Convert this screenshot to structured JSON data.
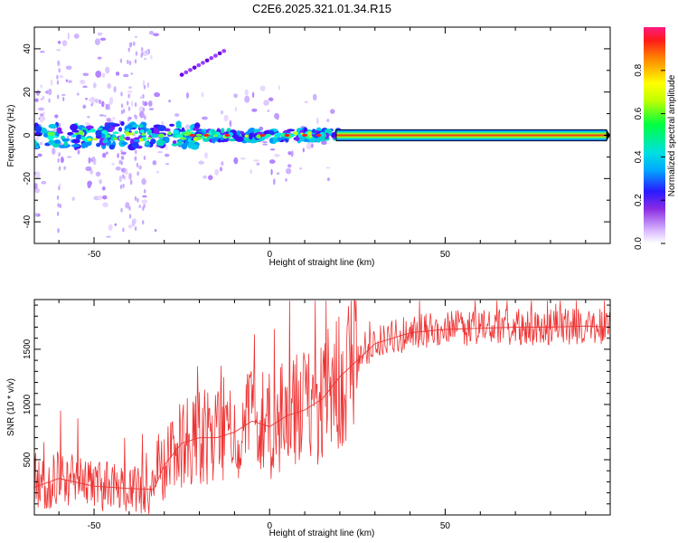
{
  "title": "C2E6.2025.321.01.34.R15",
  "chart_data": [
    {
      "type": "heatmap",
      "xlabel": "Height of straight line (km)",
      "ylabel": "Frequency (Hz)",
      "xlim": [
        -67,
        97
      ],
      "ylim": [
        -50,
        50
      ],
      "xticks": [
        -50,
        0,
        50
      ],
      "yticks": [
        -40,
        -20,
        0,
        20,
        40
      ],
      "colorbar": {
        "label": "Normalized spectral amplitude",
        "range": [
          0,
          1
        ],
        "ticks": [
          "0.0",
          "0.2",
          "0.4",
          "0.6",
          "0.8"
        ]
      },
      "dominant_line": {
        "frequency_hz": 0,
        "x_start": -67,
        "x_end": 96
      },
      "diagonal_feature": {
        "x_start": -25,
        "x_end": -13,
        "y_start": 28,
        "y_end": 39
      }
    },
    {
      "type": "line",
      "xlabel": "Height of straight line (km)",
      "ylabel": "SNR (10 * v/v)",
      "xlim": [
        -67,
        97
      ],
      "ylim": [
        0,
        1950
      ],
      "xticks": [
        -50,
        0,
        50
      ],
      "yticks": [
        500,
        1000,
        1500
      ],
      "color": "#ee3333",
      "series": [
        {
          "name": "SNR",
          "x": [
            -67,
            -60,
            -50,
            -40,
            -33,
            -30,
            -25,
            -20,
            -15,
            -10,
            -5,
            0,
            5,
            10,
            15,
            20,
            25,
            30,
            35,
            40,
            50,
            60,
            70,
            80,
            90,
            97
          ],
          "y": [
            250,
            330,
            260,
            240,
            230,
            450,
            650,
            700,
            700,
            750,
            850,
            800,
            900,
            950,
            1050,
            1250,
            1400,
            1550,
            1600,
            1650,
            1680,
            1690,
            1700,
            1700,
            1710,
            1700
          ]
        }
      ]
    }
  ]
}
